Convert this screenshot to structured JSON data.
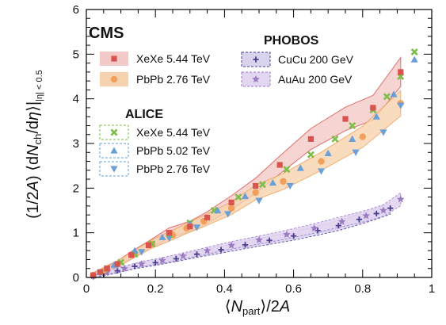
{
  "chart_data": {
    "type": "scatter",
    "experiment_label": "CMS",
    "xlabel": "⟨N_part⟩/2A",
    "ylabel": "(1/2A) ⟨dN_ch/dη⟩|_{|η|<0.5}",
    "xlim": [
      0,
      1
    ],
    "ylim": [
      0,
      6
    ],
    "x_ticks": [
      "0",
      "0.2",
      "0.4",
      "0.6",
      "0.8",
      "1"
    ],
    "y_ticks": [
      "0",
      "1",
      "2",
      "3",
      "4",
      "5",
      "6"
    ],
    "grid": false,
    "legend_groups": [
      {
        "title": "",
        "entries": [
          "XeXe 5.44 TeV",
          "PbPb 2.76 TeV"
        ]
      },
      {
        "title": "ALICE",
        "entries": [
          "XeXe 5.44 TeV",
          "PbPb 5.02 TeV",
          "PbPb 2.76 TeV"
        ]
      },
      {
        "title": "PHOBOS",
        "entries": [
          "CuCu 200 GeV",
          "AuAu 200 GeV"
        ]
      }
    ],
    "series": [
      {
        "name": "CMS XeXe 5.44 TeV",
        "marker": "square",
        "color": "#d9534f",
        "band_color": "#f2c9c6",
        "x": [
          0.02,
          0.04,
          0.06,
          0.09,
          0.13,
          0.18,
          0.24,
          0.3,
          0.35,
          0.42,
          0.49,
          0.56,
          0.65,
          0.75,
          0.83,
          0.91
        ],
        "y": [
          0.05,
          0.12,
          0.2,
          0.3,
          0.5,
          0.72,
          1.0,
          1.14,
          1.34,
          1.68,
          2.05,
          2.52,
          3.1,
          3.55,
          3.8,
          4.6
        ]
      },
      {
        "name": "CMS PbPb 2.76 TeV",
        "marker": "circle",
        "color": "#f0a05a",
        "band_color": "#f7d2ae",
        "x": [
          0.02,
          0.05,
          0.09,
          0.14,
          0.19,
          0.25,
          0.29,
          0.34,
          0.42,
          0.49,
          0.57,
          0.68,
          0.8,
          0.91
        ],
        "y": [
          0.05,
          0.15,
          0.3,
          0.53,
          0.75,
          0.95,
          1.1,
          1.26,
          1.55,
          1.9,
          2.15,
          2.6,
          3.15,
          3.9
        ]
      },
      {
        "name": "ALICE XeXe 5.44 TeV",
        "marker": "x",
        "color": "#7dbd4a",
        "x": [
          0.06,
          0.1,
          0.14,
          0.19,
          0.24,
          0.3,
          0.37,
          0.44,
          0.51,
          0.58,
          0.65,
          0.72,
          0.77,
          0.83,
          0.87,
          0.91,
          0.95
        ],
        "y": [
          0.2,
          0.34,
          0.52,
          0.75,
          0.98,
          1.22,
          1.5,
          1.8,
          2.08,
          2.42,
          2.75,
          3.1,
          3.4,
          3.75,
          4.05,
          4.5,
          5.05
        ]
      },
      {
        "name": "ALICE PbPb 5.02 TeV",
        "marker": "triangle-up",
        "color": "#6a9fd8",
        "x": [
          0.02,
          0.04,
          0.08,
          0.14,
          0.22,
          0.3,
          0.38,
          0.46,
          0.54,
          0.62,
          0.7,
          0.77,
          0.84,
          0.89,
          0.95
        ],
        "y": [
          0.05,
          0.12,
          0.28,
          0.6,
          0.9,
          1.2,
          1.5,
          1.82,
          2.12,
          2.45,
          2.78,
          3.1,
          3.6,
          4.1,
          4.88
        ]
      },
      {
        "name": "ALICE PbPb 2.76 TeV",
        "marker": "triangle-down",
        "color": "#6a9fd8",
        "x": [
          0.04,
          0.09,
          0.16,
          0.24,
          0.32,
          0.41,
          0.5,
          0.59,
          0.68,
          0.78,
          0.86,
          0.91
        ],
        "y": [
          0.1,
          0.27,
          0.57,
          0.88,
          1.12,
          1.42,
          1.72,
          2.05,
          2.38,
          2.8,
          3.25,
          3.85
        ]
      },
      {
        "name": "PHOBOS CuCu 200 GeV",
        "marker": "plus",
        "color": "#4a3f8f",
        "band_color": "#d9d3ee",
        "x": [
          0.02,
          0.05,
          0.09,
          0.14,
          0.2,
          0.26,
          0.32,
          0.39,
          0.46,
          0.53,
          0.6,
          0.67,
          0.73,
          0.79,
          0.84,
          0.88
        ],
        "y": [
          0.02,
          0.08,
          0.15,
          0.25,
          0.33,
          0.42,
          0.52,
          0.62,
          0.73,
          0.83,
          0.93,
          1.05,
          1.16,
          1.3,
          1.43,
          1.55
        ]
      },
      {
        "name": "PHOBOS AuAu 200 GeV",
        "marker": "star",
        "color": "#9b7cc4",
        "band_color": "#e2d6f0",
        "x": [
          0.02,
          0.06,
          0.11,
          0.16,
          0.22,
          0.28,
          0.35,
          0.42,
          0.5,
          0.58,
          0.66,
          0.74,
          0.81,
          0.86,
          0.91
        ],
        "y": [
          0.03,
          0.12,
          0.2,
          0.3,
          0.38,
          0.48,
          0.6,
          0.72,
          0.84,
          0.96,
          1.1,
          1.25,
          1.38,
          1.5,
          1.75
        ]
      }
    ]
  }
}
